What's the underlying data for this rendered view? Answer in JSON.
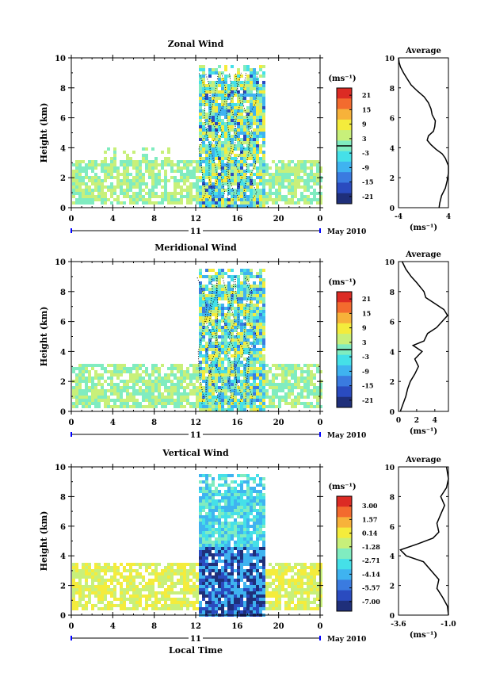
{
  "date_label": "May 2010",
  "day_label": "11",
  "xlabel": "Local Time",
  "ylabel": "Height (km)",
  "unit_label": "(ms⁻¹)",
  "x_ticks": [
    "0",
    "4",
    "8",
    "12",
    "16",
    "20",
    "0"
  ],
  "y_ticks": [
    "0",
    "2",
    "4",
    "6",
    "8",
    "10"
  ],
  "colors": [
    "#1f2f7a",
    "#2a4bbf",
    "#3a7be0",
    "#3fb3f0",
    "#45e0e8",
    "#80ecc0",
    "#c8f07a",
    "#f4ec3c",
    "#f7b23a",
    "#f36b2e",
    "#dc2b24"
  ],
  "chart_data": [
    {
      "type": "heatmap",
      "title": "Zonal Wind",
      "xlabel": "",
      "ylabel": "Height (km)",
      "xlim": [
        0,
        24
      ],
      "ylim": [
        0,
        10
      ],
      "colorbar_ticks": [
        "21",
        "15",
        "9",
        "3",
        "-3",
        "-9",
        "-15",
        "-21"
      ],
      "colorbar_range": [
        -24,
        24
      ],
      "profile": {
        "title": "Average",
        "xlabel": "(ms⁻¹)",
        "xlim": [
          -4,
          4
        ],
        "x_ticks": [
          "-4",
          "4"
        ],
        "y_ticks": [
          "0",
          "2",
          "4",
          "6",
          "8",
          "10"
        ],
        "values": [
          [
            2.5,
            0.0
          ],
          [
            2.6,
            0.3
          ],
          [
            2.9,
            0.8
          ],
          [
            3.5,
            1.3
          ],
          [
            3.8,
            1.8
          ],
          [
            4.0,
            2.3
          ],
          [
            4.1,
            2.8
          ],
          [
            3.5,
            3.3
          ],
          [
            3.0,
            3.6
          ],
          [
            2.0,
            3.9
          ],
          [
            1.2,
            4.2
          ],
          [
            0.6,
            4.5
          ],
          [
            0.8,
            4.8
          ],
          [
            1.6,
            5.1
          ],
          [
            1.8,
            5.4
          ],
          [
            1.9,
            5.8
          ],
          [
            1.4,
            6.2
          ],
          [
            1.2,
            6.6
          ],
          [
            0.8,
            7.0
          ],
          [
            0.1,
            7.4
          ],
          [
            -1.0,
            7.8
          ],
          [
            -2.0,
            8.2
          ],
          [
            -2.6,
            8.6
          ],
          [
            -3.2,
            9.0
          ],
          [
            -3.7,
            9.4
          ],
          [
            -3.9,
            9.7
          ],
          [
            -4.0,
            10.0
          ]
        ]
      }
    },
    {
      "type": "heatmap",
      "title": "Meridional Wind",
      "xlabel": "",
      "ylabel": "Height (km)",
      "xlim": [
        0,
        24
      ],
      "ylim": [
        0,
        10
      ],
      "colorbar_ticks": [
        "21",
        "15",
        "9",
        "3",
        "-3",
        "-9",
        "-15",
        "-21"
      ],
      "colorbar_range": [
        -24,
        24
      ],
      "profile": {
        "title": "Average",
        "xlabel": "(ms⁻¹)",
        "xlim": [
          0,
          5.5
        ],
        "x_ticks": [
          "0",
          "2",
          "4"
        ],
        "y_ticks": [
          "0",
          "2",
          "4",
          "6",
          "8",
          "10"
        ],
        "values": [
          [
            0.2,
            0.0
          ],
          [
            0.5,
            0.5
          ],
          [
            0.8,
            1.0
          ],
          [
            1.0,
            1.5
          ],
          [
            1.3,
            2.0
          ],
          [
            1.8,
            2.5
          ],
          [
            2.2,
            3.0
          ],
          [
            1.8,
            3.5
          ],
          [
            2.6,
            4.0
          ],
          [
            1.6,
            4.4
          ],
          [
            2.8,
            4.7
          ],
          [
            3.2,
            5.2
          ],
          [
            4.2,
            5.6
          ],
          [
            4.8,
            6.0
          ],
          [
            5.4,
            6.4
          ],
          [
            5.0,
            6.8
          ],
          [
            4.0,
            7.2
          ],
          [
            3.0,
            7.6
          ],
          [
            2.8,
            8.0
          ],
          [
            2.0,
            8.6
          ],
          [
            1.4,
            9.0
          ],
          [
            0.8,
            9.5
          ],
          [
            0.4,
            10.0
          ]
        ]
      }
    },
    {
      "type": "heatmap",
      "title": "Vertical Wind",
      "xlabel": "Local Time",
      "ylabel": "Height (km)",
      "xlim": [
        0,
        24
      ],
      "ylim": [
        0,
        10
      ],
      "colorbar_ticks": [
        "3.00",
        "1.57",
        "0.14",
        "-1.28",
        "-2.71",
        "-4.14",
        "-5.57",
        "-7.00"
      ],
      "colorbar_range": [
        -8,
        4
      ],
      "profile": {
        "title": "Average",
        "xlabel": "(ms⁻¹)",
        "xlim": [
          -3.6,
          -1.0
        ],
        "x_ticks": [
          "-3.6",
          "-1.0"
        ],
        "y_ticks": [
          "0",
          "2",
          "4",
          "6",
          "8",
          "10"
        ],
        "values": [
          [
            -1.0,
            0.0
          ],
          [
            -1.05,
            0.6
          ],
          [
            -1.3,
            1.2
          ],
          [
            -1.6,
            1.8
          ],
          [
            -1.5,
            2.4
          ],
          [
            -1.9,
            3.0
          ],
          [
            -2.3,
            3.6
          ],
          [
            -3.2,
            4.0
          ],
          [
            -3.5,
            4.4
          ],
          [
            -2.6,
            4.8
          ],
          [
            -1.8,
            5.2
          ],
          [
            -1.5,
            5.6
          ],
          [
            -1.6,
            6.2
          ],
          [
            -1.4,
            6.8
          ],
          [
            -1.2,
            7.4
          ],
          [
            -1.4,
            8.0
          ],
          [
            -1.1,
            8.6
          ],
          [
            -1.0,
            9.2
          ],
          [
            -1.1,
            10.0
          ]
        ]
      }
    }
  ]
}
